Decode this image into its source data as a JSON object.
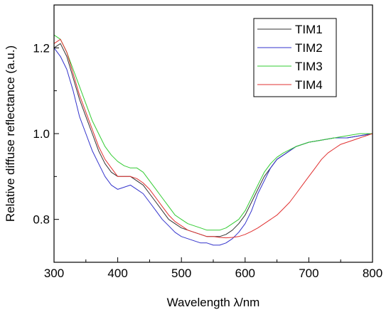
{
  "chart_data": {
    "type": "line",
    "xlabel": "Wavelength λ/nm",
    "ylabel": "Relative diffuse reflectance (a.u.)",
    "xlim": [
      300,
      800
    ],
    "ylim": [
      0.7,
      1.3
    ],
    "x_ticks": [
      300,
      400,
      500,
      600,
      700,
      800
    ],
    "y_ticks": [
      0.8,
      1.0,
      1.2
    ],
    "grid": false,
    "legend_position": "top-right",
    "series": [
      {
        "name": "TIM1",
        "color": "#333333",
        "x": [
          300,
          310,
          320,
          330,
          340,
          350,
          360,
          370,
          380,
          390,
          400,
          410,
          420,
          430,
          440,
          450,
          460,
          470,
          480,
          490,
          500,
          510,
          520,
          530,
          540,
          550,
          560,
          570,
          580,
          590,
          600,
          610,
          620,
          630,
          640,
          650,
          660,
          680,
          700,
          720,
          740,
          760,
          780,
          800
        ],
        "y": [
          1.2,
          1.21,
          1.18,
          1.13,
          1.08,
          1.04,
          1.0,
          0.96,
          0.93,
          0.91,
          0.9,
          0.9,
          0.9,
          0.89,
          0.88,
          0.86,
          0.84,
          0.82,
          0.8,
          0.79,
          0.78,
          0.775,
          0.77,
          0.765,
          0.76,
          0.76,
          0.76,
          0.765,
          0.775,
          0.79,
          0.81,
          0.84,
          0.87,
          0.9,
          0.92,
          0.94,
          0.95,
          0.97,
          0.98,
          0.985,
          0.99,
          0.99,
          0.995,
          1.0
        ]
      },
      {
        "name": "TIM2",
        "color": "#3333cc",
        "x": [
          300,
          310,
          320,
          330,
          340,
          350,
          360,
          370,
          380,
          390,
          400,
          410,
          420,
          430,
          440,
          450,
          460,
          470,
          480,
          490,
          500,
          510,
          520,
          530,
          540,
          550,
          560,
          570,
          580,
          590,
          600,
          610,
          620,
          630,
          640,
          650,
          660,
          680,
          700,
          720,
          740,
          760,
          780,
          800
        ],
        "y": [
          1.2,
          1.18,
          1.15,
          1.1,
          1.04,
          1.0,
          0.96,
          0.93,
          0.9,
          0.88,
          0.87,
          0.875,
          0.88,
          0.87,
          0.86,
          0.84,
          0.82,
          0.8,
          0.785,
          0.77,
          0.76,
          0.755,
          0.75,
          0.745,
          0.745,
          0.74,
          0.74,
          0.745,
          0.755,
          0.77,
          0.79,
          0.82,
          0.86,
          0.89,
          0.92,
          0.94,
          0.95,
          0.97,
          0.98,
          0.985,
          0.99,
          0.99,
          0.995,
          1.0
        ]
      },
      {
        "name": "TIM3",
        "color": "#33cc33",
        "x": [
          300,
          310,
          320,
          330,
          340,
          350,
          360,
          370,
          380,
          390,
          400,
          410,
          420,
          430,
          440,
          450,
          460,
          470,
          480,
          490,
          500,
          510,
          520,
          530,
          540,
          550,
          560,
          570,
          580,
          590,
          600,
          610,
          620,
          630,
          640,
          650,
          660,
          680,
          700,
          720,
          740,
          760,
          780,
          800
        ],
        "y": [
          1.23,
          1.22,
          1.19,
          1.15,
          1.11,
          1.07,
          1.03,
          1.0,
          0.97,
          0.95,
          0.935,
          0.925,
          0.92,
          0.92,
          0.91,
          0.89,
          0.87,
          0.85,
          0.83,
          0.81,
          0.8,
          0.79,
          0.785,
          0.78,
          0.775,
          0.775,
          0.775,
          0.78,
          0.79,
          0.8,
          0.82,
          0.85,
          0.88,
          0.91,
          0.93,
          0.945,
          0.955,
          0.97,
          0.98,
          0.985,
          0.99,
          0.995,
          1.0,
          1.0
        ]
      },
      {
        "name": "TIM4",
        "color": "#e03030",
        "x": [
          300,
          310,
          320,
          330,
          340,
          350,
          360,
          370,
          380,
          390,
          400,
          410,
          420,
          430,
          440,
          450,
          460,
          470,
          480,
          490,
          500,
          510,
          520,
          530,
          540,
          550,
          560,
          570,
          580,
          590,
          600,
          610,
          620,
          630,
          640,
          650,
          660,
          670,
          680,
          690,
          700,
          710,
          720,
          730,
          740,
          750,
          760,
          770,
          780,
          790,
          800
        ],
        "y": [
          1.21,
          1.22,
          1.19,
          1.14,
          1.09,
          1.05,
          1.01,
          0.97,
          0.94,
          0.92,
          0.9,
          0.9,
          0.9,
          0.895,
          0.885,
          0.87,
          0.85,
          0.83,
          0.81,
          0.795,
          0.785,
          0.775,
          0.77,
          0.765,
          0.76,
          0.76,
          0.758,
          0.757,
          0.758,
          0.76,
          0.765,
          0.772,
          0.78,
          0.79,
          0.8,
          0.81,
          0.825,
          0.84,
          0.86,
          0.88,
          0.9,
          0.92,
          0.94,
          0.955,
          0.965,
          0.975,
          0.98,
          0.985,
          0.99,
          0.995,
          1.0
        ]
      }
    ]
  }
}
